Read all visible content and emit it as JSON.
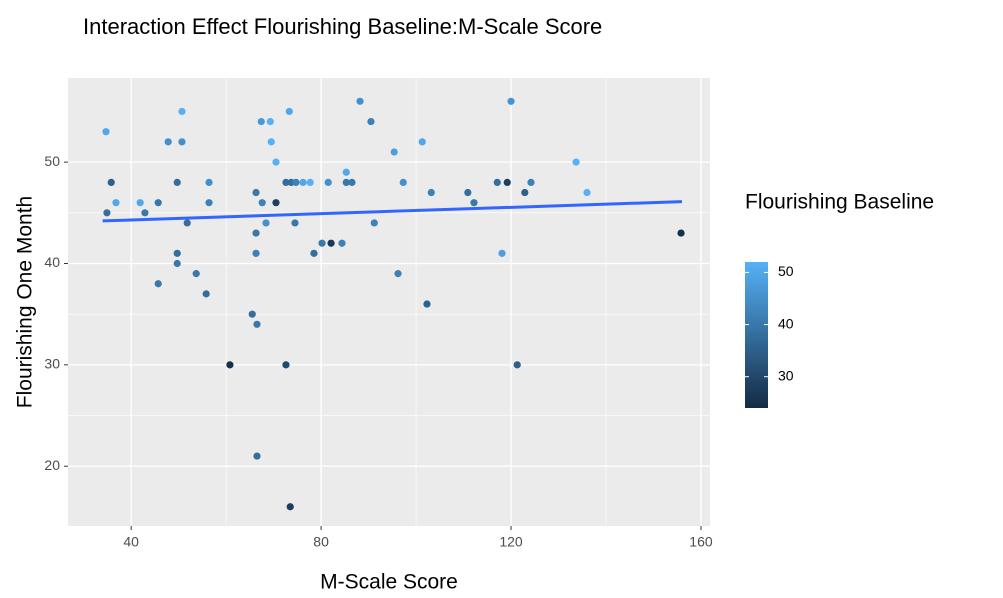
{
  "chart_data": {
    "type": "scatter",
    "title": "Interaction Effect Flourishing Baseline:M-Scale Score",
    "x_label": "M-Scale Score",
    "y_label": "Flourishing One Month",
    "color_label": "Flourishing Baseline",
    "x": [
      34.7,
      34.9,
      35.8,
      36.8,
      41.9,
      42.9,
      45.7,
      45.7,
      47.8,
      49.7,
      49.7,
      49.7,
      50.7,
      50.7,
      51.8,
      53.7,
      55.8,
      56.4,
      56.4,
      60.8,
      65.5,
      66.3,
      66.3,
      66.3,
      66.5,
      66.5,
      67.4,
      67.6,
      68.4,
      69.3,
      69.5,
      70.5,
      70.5,
      72.6,
      72.6,
      73.3,
      73.5,
      73.7,
      74.7,
      74.5,
      76.2,
      77.7,
      78.5,
      80.2,
      81.5,
      82.1,
      84.4,
      85.3,
      85.3,
      86.5,
      88.2,
      90.5,
      91.2,
      95.4,
      96.2,
      97.3,
      101.3,
      102.3,
      103.2,
      110.9,
      112.2,
      117.1,
      118.1,
      119.2,
      120,
      121.3,
      122.9,
      124.2,
      133.7,
      136,
      155.8
    ],
    "values": [
      53,
      45,
      48,
      46,
      46,
      45,
      46,
      38,
      52,
      48,
      41,
      40,
      55,
      52,
      44,
      39,
      37,
      48,
      46,
      30,
      35,
      47,
      43,
      41,
      34,
      21,
      54,
      46,
      44,
      54,
      52,
      50,
      46,
      48,
      30,
      55,
      16,
      48,
      48,
      44,
      48,
      48,
      41,
      42,
      48,
      42,
      42,
      49,
      48,
      48,
      56,
      54,
      44,
      51,
      39,
      48,
      52,
      36,
      47,
      47,
      46,
      48,
      41,
      48,
      56,
      30,
      47,
      48,
      50,
      47,
      43
    ],
    "color_values": [
      50,
      38,
      35,
      50,
      50,
      40,
      40,
      40,
      45,
      38,
      38,
      40,
      52,
      45,
      38,
      40,
      38,
      45,
      42,
      25,
      38,
      40,
      40,
      42,
      40,
      38,
      47,
      42,
      45,
      52,
      52,
      52,
      28,
      38,
      30,
      50,
      28,
      38,
      42,
      40,
      50,
      52,
      38,
      40,
      45,
      27,
      42,
      50,
      40,
      40,
      45,
      42,
      42,
      48,
      42,
      45,
      50,
      35,
      42,
      38,
      40,
      38,
      48,
      28,
      46,
      35,
      35,
      42,
      52,
      52,
      25
    ],
    "trend": {
      "x": [
        34,
        156
      ],
      "values": [
        44.2,
        46.1
      ],
      "color": "#3366FF"
    },
    "color_scale": {
      "low": "#132B43",
      "high": "#56B1F7"
    },
    "clim": [
      24,
      52
    ],
    "cticks": [
      30,
      40,
      50
    ],
    "xlim": [
      26.7,
      161.9
    ],
    "xticks": [
      40,
      80,
      120,
      160
    ],
    "ylim": [
      14.1,
      58.3
    ],
    "yticks": [
      20,
      30,
      40,
      50
    ],
    "grid": true
  }
}
